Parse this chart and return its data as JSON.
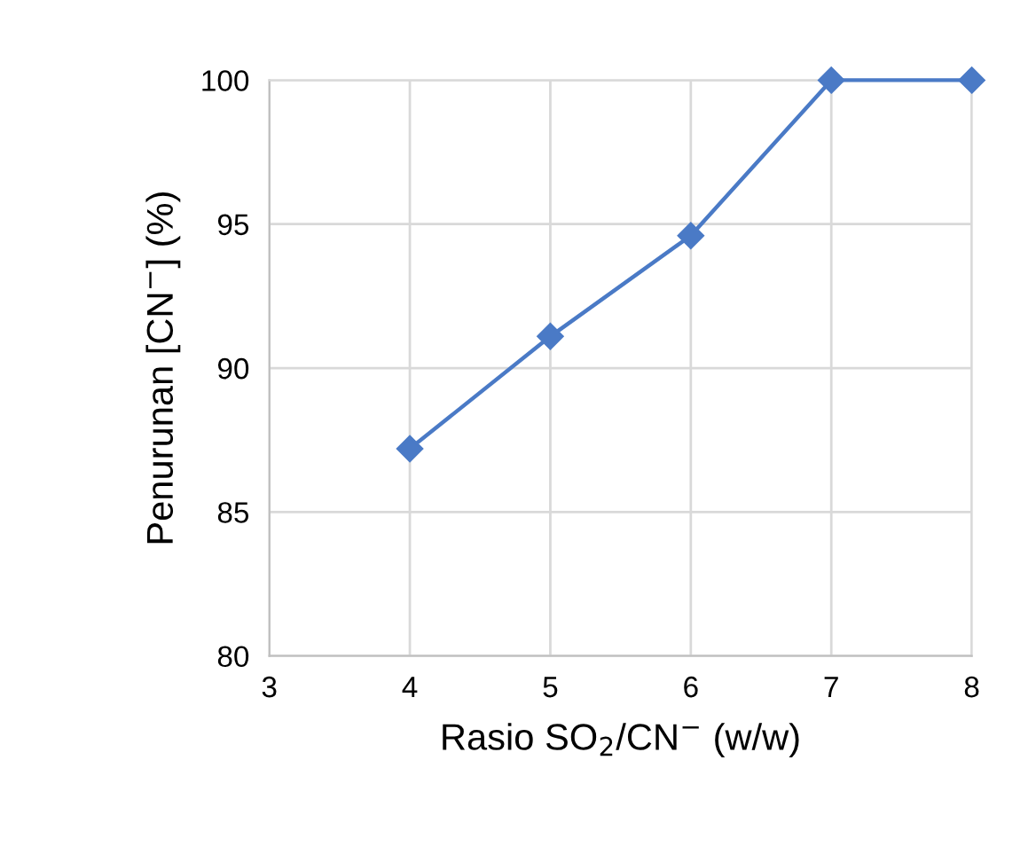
{
  "chart_data": {
    "type": "line",
    "xlabel": "Rasio SO$_{2}$/CN$^{−}$ (w/w)",
    "ylabel": "Penurunan [CN$^{−}$] (%)",
    "x": [
      4,
      5,
      6,
      7,
      8
    ],
    "series": [
      {
        "color": "#4a7ac6",
        "values": [
          87.2,
          91.1,
          94.6,
          100,
          100
        ]
      }
    ],
    "xlim": [
      3,
      8
    ],
    "xticks": [
      3,
      4,
      5,
      6,
      7,
      8
    ],
    "ylim": [
      80,
      100
    ],
    "yticks": [
      80,
      85,
      90,
      95,
      100
    ],
    "grid": true,
    "marker": "diamond",
    "line_style": "solid"
  }
}
